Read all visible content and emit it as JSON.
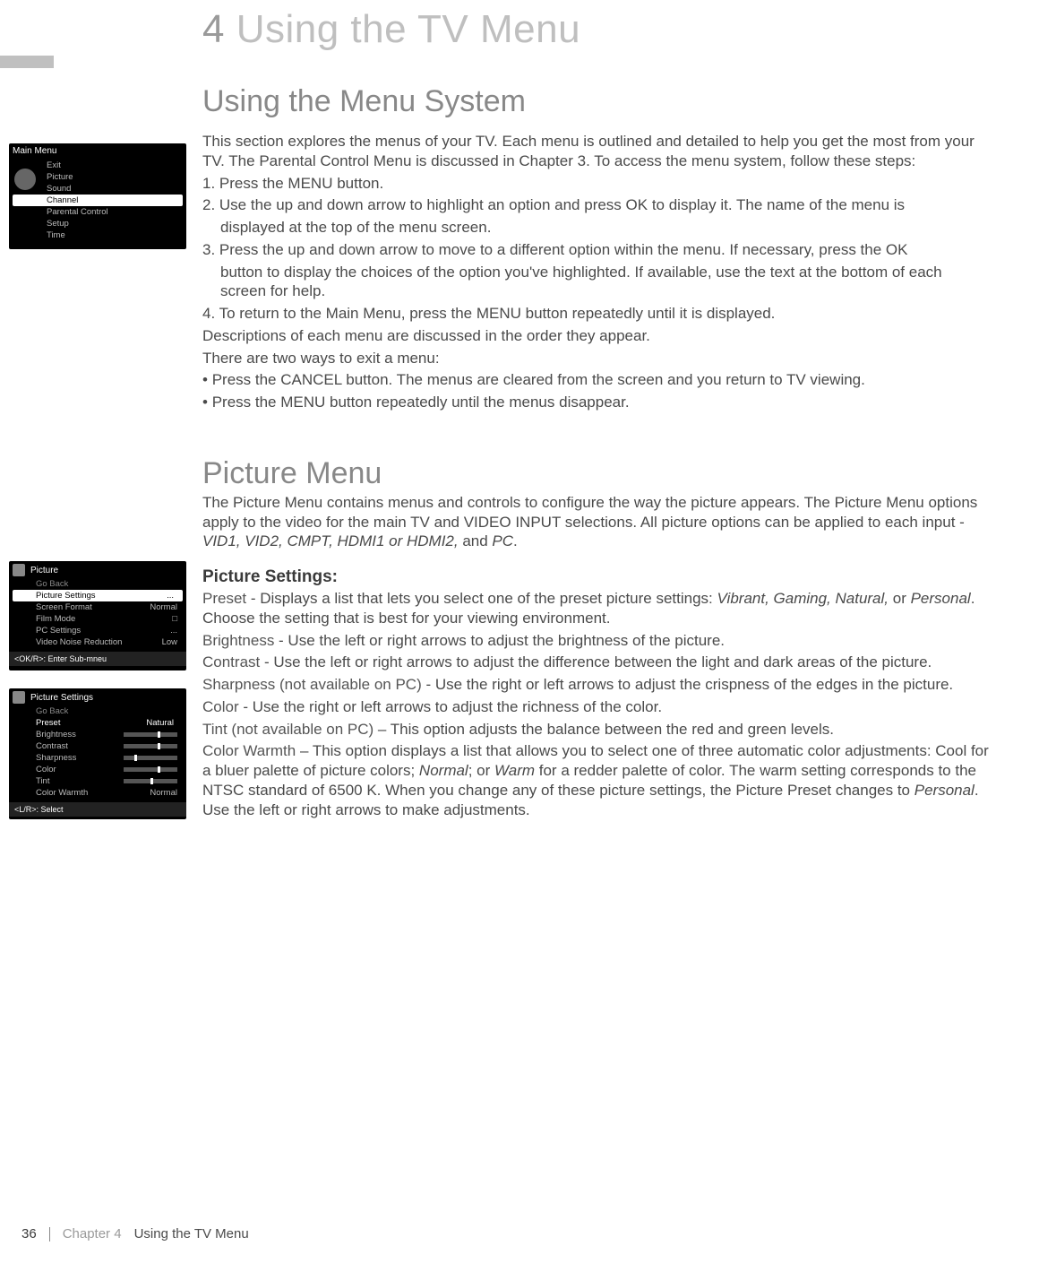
{
  "chapter": {
    "num": "4",
    "title": "Using the TV Menu"
  },
  "section1": {
    "heading": "Using the Menu System",
    "intro": "This section explores the menus of your TV. Each menu is outlined and detailed to help you get the most from your TV. The Parental Control Menu is discussed in Chapter 3. To access the menu system, follow these steps:",
    "step1": "1. Press the MENU button.",
    "step2": "2. Use the up and down arrow to highlight an option and press OK to display it. The name of the menu is",
    "step2b": "displayed at the top of the menu screen.",
    "step3": "3. Press the up and down arrow to move to a different option within the menu. If necessary, press the OK",
    "step3b": "button to display the choices of the option you've highlighted. If available, use the text at the bottom of each screen for help.",
    "step4": "4. To return to the Main Menu, press the MENU button repeatedly until it is displayed.",
    "desc": "Descriptions of each menu are discussed in the order they appear.",
    "exit": "There are two ways to exit a menu:",
    "exit1": "Press the CANCEL button. The menus are cleared from the screen and you return to TV viewing.",
    "exit2": "Press the MENU button repeatedly until the menus disappear."
  },
  "section2": {
    "heading": "Picture Menu",
    "intro_a": "The Picture Menu contains menus and controls to configure the way the picture appears. The Picture Menu options apply to the video for the main TV and VIDEO INPUT selections. All picture options can be applied to each input - ",
    "intro_inputs": "VID1, VID2, CMPT, HDMI1 or HDMI2,",
    "intro_b": " and ",
    "intro_pc": "PC",
    "dot": ".",
    "sub": "Picture Settings:",
    "preset_lbl": "Preset",
    "preset_a": " -  Displays a list that lets you select one of the preset picture settings: ",
    "preset_opts": "Vibrant, Gaming, Natural,",
    "preset_b": " or ",
    "preset_pers": "Personal",
    "preset_c": ".  Choose the setting that is best for your viewing environment.",
    "bright_lbl": "Brightness",
    "bright": " -  Use the left or right arrows to adjust the brightness of the picture.",
    "contrast_lbl": "Contrast",
    "contrast": " - Use the left or right arrows to adjust the difference between the light and dark areas of the picture.",
    "sharp_lbl": "Sharpness (not available on PC)",
    "sharp": " - Use the right or left arrows to adjust the crispness of the edges in the picture.",
    "color_lbl": "Color",
    "color": " - Use the right or left arrows to adjust the richness of the color.",
    "tint_lbl": "Tint (not available on PC)",
    "tint": " – This option adjusts the balance between the red and green levels.",
    "warm_lbl": "Color Warmth",
    "warm_a": " – This option displays a list that allows you to select one of three automatic color adjustments: Cool for a bluer palette of picture colors; ",
    "warm_n": "Normal",
    "warm_b": "; or ",
    "warm_w": "Warm",
    "warm_c": " for a redder palette of color. The warm setting corresponds to the NTSC standard of 6500 K. When you change any of these picture settings, the Picture Preset changes to ",
    "warm_p": "Personal",
    "warm_d": ". Use the left or right arrows to make adjustments."
  },
  "mainmenu": {
    "title": "Main Menu",
    "items": [
      "Exit",
      "Picture",
      "Sound",
      "Channel",
      "Parental Control",
      "Setup",
      "Time"
    ],
    "highlight_index": 3
  },
  "picmenu": {
    "title": "Picture",
    "back": "Go Back",
    "rows": [
      {
        "l": "Picture Settings",
        "r": "..."
      },
      {
        "l": "Screen Format",
        "r": "Normal"
      },
      {
        "l": "Film Mode",
        "r": "□"
      },
      {
        "l": "PC Settings",
        "r": "..."
      },
      {
        "l": "Video Noise Reduction",
        "r": "Low"
      }
    ],
    "help": "<OK/R>: Enter Sub-mneu"
  },
  "picset": {
    "title": "Picture Settings",
    "back": "Go Back",
    "preset_l": "Preset",
    "preset_r": "Natural",
    "sliders": [
      "Brightness",
      "Contrast",
      "Sharpness",
      "Color",
      "Tint"
    ],
    "positions": [
      38,
      38,
      12,
      38,
      30
    ],
    "warm_l": "Color Warmth",
    "warm_r": "Normal",
    "help": "<L/R>: Select"
  },
  "footer": {
    "page": "36",
    "chap": "Chapter 4",
    "title": "Using the TV Menu"
  }
}
